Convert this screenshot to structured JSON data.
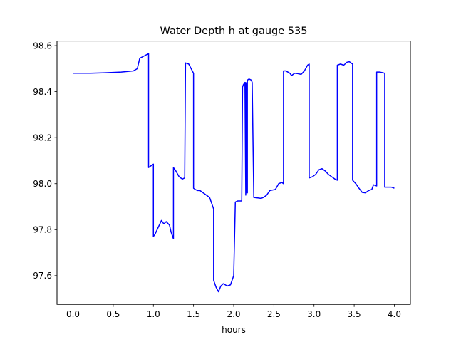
{
  "chart_data": {
    "type": "line",
    "title": "Water Depth h at gauge 535",
    "xlabel": "hours",
    "ylabel": "",
    "xlim": [
      -0.2,
      4.2
    ],
    "ylim": [
      97.475,
      98.62
    ],
    "x_ticks": [
      0.0,
      0.5,
      1.0,
      1.5,
      2.0,
      2.5,
      3.0,
      3.5,
      4.0
    ],
    "x_tick_labels": [
      "0.0",
      "0.5",
      "1.0",
      "1.5",
      "2.0",
      "2.5",
      "3.0",
      "3.5",
      "4.0"
    ],
    "y_ticks": [
      97.6,
      97.8,
      98.0,
      98.2,
      98.4,
      98.6
    ],
    "y_tick_labels": [
      "97.6",
      "97.8",
      "98.0",
      "98.2",
      "98.4",
      "98.6"
    ],
    "grid": false,
    "legend": "none",
    "series": [
      {
        "color": "#0000ff",
        "x": [
          0.0,
          0.2,
          0.4,
          0.6,
          0.75,
          0.8,
          0.83,
          0.9,
          0.94,
          0.94,
          0.98,
          1.0,
          1.0,
          1.02,
          1.06,
          1.1,
          1.13,
          1.16,
          1.2,
          1.22,
          1.25,
          1.25,
          1.28,
          1.32,
          1.36,
          1.39,
          1.4,
          1.44,
          1.5,
          1.5,
          1.52,
          1.55,
          1.58,
          1.62,
          1.66,
          1.7,
          1.75,
          1.75,
          1.78,
          1.81,
          1.84,
          1.87,
          1.92,
          1.96,
          2.0,
          2.02,
          2.02,
          2.05,
          2.1,
          2.11,
          2.12,
          2.14,
          2.15,
          2.15,
          2.16,
          2.16,
          2.17,
          2.17,
          2.19,
          2.22,
          2.23,
          2.25,
          2.3,
          2.34,
          2.37,
          2.41,
          2.45,
          2.52,
          2.56,
          2.6,
          2.62,
          2.62,
          2.65,
          2.7,
          2.72,
          2.76,
          2.8,
          2.84,
          2.88,
          2.92,
          2.94,
          2.94,
          2.98,
          3.02,
          3.06,
          3.1,
          3.14,
          3.18,
          3.22,
          3.26,
          3.29,
          3.29,
          3.33,
          3.37,
          3.41,
          3.44,
          3.48,
          3.48,
          3.52,
          3.56,
          3.6,
          3.64,
          3.68,
          3.72,
          3.74,
          3.78,
          3.78,
          3.82,
          3.86,
          3.88,
          3.88,
          3.92,
          3.96,
          3.98,
          4.0
        ],
        "y": [
          98.48,
          98.48,
          98.482,
          98.485,
          98.49,
          98.5,
          98.545,
          98.558,
          98.565,
          98.07,
          98.08,
          98.085,
          97.77,
          97.78,
          97.81,
          97.84,
          97.825,
          97.835,
          97.82,
          97.79,
          97.76,
          98.07,
          98.055,
          98.03,
          98.02,
          98.025,
          98.525,
          98.52,
          98.48,
          97.98,
          97.975,
          97.97,
          97.97,
          97.96,
          97.95,
          97.94,
          97.89,
          97.58,
          97.55,
          97.53,
          97.555,
          97.565,
          97.555,
          97.56,
          97.6,
          97.915,
          97.92,
          97.925,
          97.925,
          98.42,
          98.43,
          98.44,
          97.95,
          98.44,
          98.43,
          97.96,
          97.96,
          98.45,
          98.455,
          98.45,
          98.44,
          97.94,
          97.938,
          97.936,
          97.94,
          97.95,
          97.97,
          97.975,
          98.0,
          98.005,
          98.0,
          98.49,
          98.49,
          98.48,
          98.47,
          98.48,
          98.478,
          98.475,
          98.49,
          98.515,
          98.52,
          98.025,
          98.03,
          98.04,
          98.06,
          98.065,
          98.055,
          98.04,
          98.03,
          98.02,
          98.015,
          98.515,
          98.52,
          98.515,
          98.528,
          98.53,
          98.52,
          98.015,
          98.0,
          97.98,
          97.962,
          97.96,
          97.97,
          97.975,
          97.995,
          97.99,
          98.485,
          98.485,
          98.482,
          98.48,
          97.985,
          97.985,
          97.985,
          97.983,
          97.98
        ]
      }
    ]
  }
}
